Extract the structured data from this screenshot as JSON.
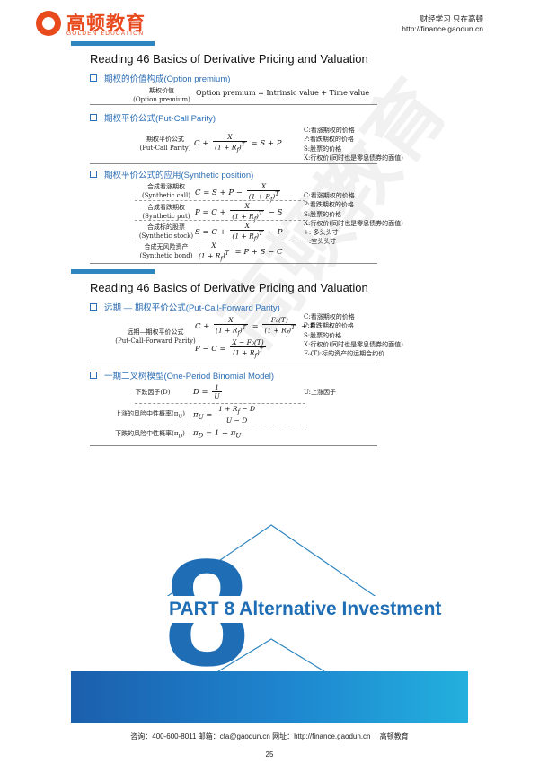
{
  "header": {
    "logo_text": "高顿教育",
    "logo_sub": "GOLDEN EDUCATION",
    "slogan": "财经学习 只在高顿",
    "url": "http://finance.gaodun.cn"
  },
  "block1": {
    "title": "Reading 46 Basics of Derivative Pricing and Valuation",
    "sec1": {
      "heading": "期权的价值构成(Option premium)",
      "label_cn": "期权价值",
      "label_en": "(Option premium)",
      "formula": "Option premium = Intrinsic value + Time value"
    },
    "sec2": {
      "heading": "期权平价公式(Put-Call Parity)",
      "label_cn": "期权平价公式",
      "label_en": "(Put-Call Parity)",
      "lhs": "C +",
      "num": "X",
      "den": "(1 + R",
      "den_sub": "f",
      "den_sup": ")",
      "den_T": "T",
      "rhs": "= S + P",
      "notes": [
        "C:看涨期权的价格",
        "P:看跌期权的价格",
        "S:股票的价格",
        "X:行权价(同时也是零息债券的面值)"
      ]
    },
    "sec3": {
      "heading": "期权平价公式的应用(Synthetic position)",
      "rows": [
        {
          "cn": "合成看涨期权",
          "en": "(Synthetic call)",
          "pre": "C = S + P −",
          "post": ""
        },
        {
          "cn": "合成看跌期权",
          "en": "(Synthetic put)",
          "pre": "P = C +",
          "post": "− S"
        },
        {
          "cn": "合成标的股票",
          "en": "(Synthetic stock)",
          "pre": "S = C +",
          "post": "− P"
        },
        {
          "cn": "合成无风险资产",
          "en": "(Synthetic bond)",
          "pre": "",
          "post": "= P + S − C"
        }
      ],
      "notes": [
        "C:看涨期权的价格",
        "P:看跌期权的价格",
        "S:股票的价格",
        "X:行权价(同时也是零息债券的面值)",
        "+: 多头头寸",
        "−:空头头寸"
      ]
    }
  },
  "block2": {
    "title": "Reading 46 Basics of Derivative Pricing and Valuation",
    "sec1": {
      "heading": "远期 — 期权平价公式(Put-Call-Forward Parity)",
      "label_cn": "远期—期权平价公式",
      "label_en": "(Put-Call-Forward Parity)",
      "f1_pre": "C +",
      "f1_mid": "=",
      "f1_num2": "F₀(T)",
      "f1_post": "+ P",
      "f2_pre": "P − C =",
      "f2_num": "X − F₀(T)",
      "notes": [
        "C:看涨期权的价格",
        "P:看跌期权的价格",
        "S:股票的价格",
        "X:行权价(同时也是零息债券的面值)",
        "F₀(T):标的资产的远期合约价"
      ]
    },
    "sec2": {
      "heading": "一期二叉树模型(One-Period Binomial Model)",
      "rows": [
        {
          "label": "下跌因子(D)",
          "pre": "D =",
          "num": "1",
          "den": "U",
          "post": "",
          "note": "U:上涨因子"
        },
        {
          "label": "上涨的风险中性概率(π",
          "label_sub": "U",
          "label_end": ")",
          "pre": "π",
          "pre_sub": "U",
          "pre_end": " =",
          "num": "1 + R",
          "num_sub": "f",
          "num_end": " − D",
          "den": "U − D"
        },
        {
          "label": "下跌的风险中性概率(π",
          "label_sub": "D",
          "label_end": ")",
          "pre": "π",
          "pre_sub": "D",
          "pre_end": " = 1 − π",
          "post_sub": "U"
        }
      ]
    }
  },
  "part": {
    "number": "8",
    "title": "PART 8 Alternative Investment"
  },
  "watermark": "高顿教育",
  "footer": {
    "contact": "咨询：400-600-8011 邮箱：cfa@gaodun.cn 网址：http://finance.gaodun.cn ｜高顿教育",
    "page": "25"
  }
}
